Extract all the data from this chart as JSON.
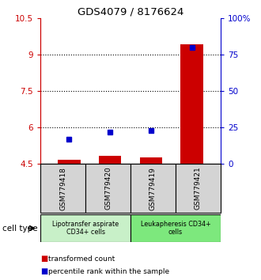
{
  "title": "GDS4079 / 8176624",
  "samples": [
    "GSM779418",
    "GSM779420",
    "GSM779419",
    "GSM779421"
  ],
  "red_values": [
    4.65,
    4.82,
    4.75,
    9.42
  ],
  "blue_values": [
    5.52,
    5.82,
    5.88,
    9.28
  ],
  "ylim_left": [
    4.5,
    10.5
  ],
  "ylim_right": [
    0,
    100
  ],
  "yticks_left": [
    4.5,
    6.0,
    7.5,
    9.0,
    10.5
  ],
  "ytick_labels_left": [
    "4.5",
    "6",
    "7.5",
    "9",
    "10.5"
  ],
  "yticks_right": [
    0,
    25,
    50,
    75,
    100
  ],
  "ytick_labels_right": [
    "0",
    "25",
    "50",
    "75",
    "100%"
  ],
  "grid_yticks": [
    6.0,
    7.5,
    9.0
  ],
  "group1_label": "Lipotransfer aspirate\nCD34+ cells",
  "group2_label": "Leukapheresis CD34+\ncells",
  "group1_color": "#c8f0c8",
  "group2_color": "#7de87d",
  "sample_box_color": "#d4d4d4",
  "bar_color": "#cc0000",
  "dot_color": "#0000cc",
  "left_axis_color": "#cc0000",
  "right_axis_color": "#0000cc",
  "legend_red": "transformed count",
  "legend_blue": "percentile rank within the sample",
  "cell_type_label": "cell type",
  "bar_bottom": 4.5,
  "bar_width": 0.55
}
